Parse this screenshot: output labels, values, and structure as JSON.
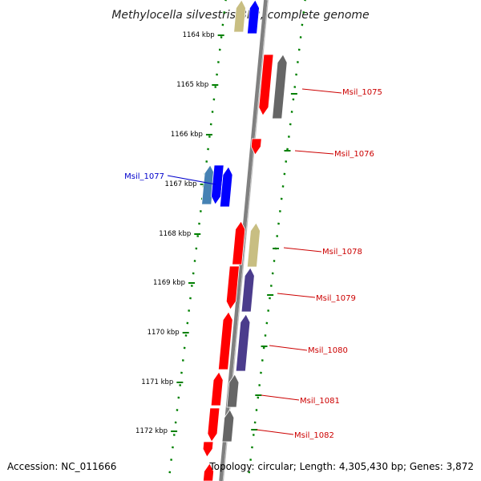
{
  "title": "Methylocella silvestris BL2, complete genome",
  "footer": {
    "accession": "Accession: NC_011666",
    "summary": "Topology: circular; Length: 4,305,430 bp; Genes: 3,872"
  },
  "ticks": [
    "1164 kbp",
    "1165 kbp",
    "1166 kbp",
    "1167 kbp",
    "1168 kbp",
    "1169 kbp",
    "1170 kbp",
    "1171 kbp",
    "1172 kbp"
  ],
  "colors": {
    "red": "#ff0000",
    "blue": "#0000ff",
    "gray": "#666666",
    "khaki": "#c8be82",
    "purple": "#4b3c8c",
    "steelblue": "#4682b4",
    "tick_green": "#008000",
    "backbone": "#808080"
  },
  "gene_labels": [
    {
      "name": "Msil_1075",
      "color": "#cc0000"
    },
    {
      "name": "Msil_1076",
      "color": "#cc0000"
    },
    {
      "name": "Msil_1077",
      "color": "#0000cc"
    },
    {
      "name": "Msil_1078",
      "color": "#cc0000"
    },
    {
      "name": "Msil_1079",
      "color": "#cc0000"
    },
    {
      "name": "Msil_1080",
      "color": "#cc0000"
    },
    {
      "name": "Msil_1081",
      "color": "#cc0000"
    },
    {
      "name": "Msil_1082",
      "color": "#cc0000"
    }
  ]
}
